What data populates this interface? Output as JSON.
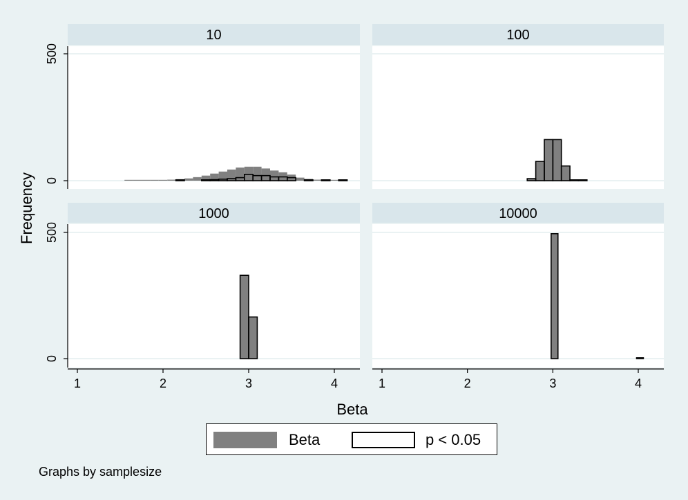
{
  "chart_data": {
    "type": "bar",
    "subtype": "faceted-histogram",
    "xlabel": "Beta",
    "ylabel": "Frequency",
    "xlim": [
      0.9,
      4.2
    ],
    "ylim": [
      0,
      500
    ],
    "x_ticks": [
      1,
      2,
      3,
      4
    ],
    "y_ticks": [
      0,
      500
    ],
    "grid": true,
    "legend_position": "bottom",
    "series_colors": {
      "Beta": "#808080",
      "p < 0.05": "#ffffff"
    },
    "note": "Graphs by samplesize",
    "legend": [
      "Beta",
      "p < 0.05"
    ],
    "panels": [
      {
        "title": "10",
        "bin_width": 0.1,
        "series": [
          {
            "name": "Beta",
            "x": [
              1.6,
              1.7,
              1.8,
              1.9,
              2.0,
              2.1,
              2.2,
              2.3,
              2.4,
              2.5,
              2.6,
              2.7,
              2.8,
              2.9,
              3.0,
              3.1,
              3.2,
              3.3,
              3.4,
              3.5,
              3.6,
              3.7,
              3.8,
              3.9,
              4.0
            ],
            "values": [
              1,
              1,
              2,
              2,
              3,
              4,
              6,
              9,
              14,
              20,
              28,
              36,
              44,
              52,
              55,
              55,
              48,
              40,
              33,
              24,
              12,
              7,
              4,
              2,
              1
            ]
          },
          {
            "name": "p < 0.05",
            "x": [
              2.2,
              2.5,
              2.6,
              2.7,
              2.8,
              2.9,
              3.0,
              3.1,
              3.2,
              3.3,
              3.4,
              3.5,
              3.7,
              3.9,
              4.1
            ],
            "values": [
              2,
              2,
              4,
              6,
              8,
              12,
              25,
              20,
              20,
              15,
              15,
              12,
              3,
              2,
              2
            ]
          }
        ]
      },
      {
        "title": "100",
        "bin_width": 0.1,
        "series": [
          {
            "name": "Beta",
            "x": [
              2.75,
              2.85,
              2.95,
              3.05,
              3.15,
              3.25,
              3.35
            ],
            "values": [
              8,
              76,
              162,
              162,
              58,
              3,
              2
            ]
          },
          {
            "name": "p < 0.05",
            "x": [
              2.75,
              2.85,
              2.95,
              3.05,
              3.15,
              3.25,
              3.35
            ],
            "values": [
              8,
              76,
              162,
              162,
              58,
              3,
              2
            ]
          }
        ]
      },
      {
        "title": "1000",
        "bin_width": 0.1,
        "series": [
          {
            "name": "Beta",
            "x": [
              2.95,
              3.05
            ],
            "values": [
              330,
              165
            ]
          },
          {
            "name": "p < 0.05",
            "x": [
              2.95,
              3.05
            ],
            "values": [
              330,
              165
            ]
          }
        ]
      },
      {
        "title": "10000",
        "bin_width": 0.08,
        "series": [
          {
            "name": "Beta",
            "x": [
              3.02,
              4.02
            ],
            "values": [
              495,
              0.5
            ]
          },
          {
            "name": "p < 0.05",
            "x": [
              3.02,
              4.02
            ],
            "values": [
              495,
              0.5
            ]
          }
        ]
      }
    ]
  }
}
